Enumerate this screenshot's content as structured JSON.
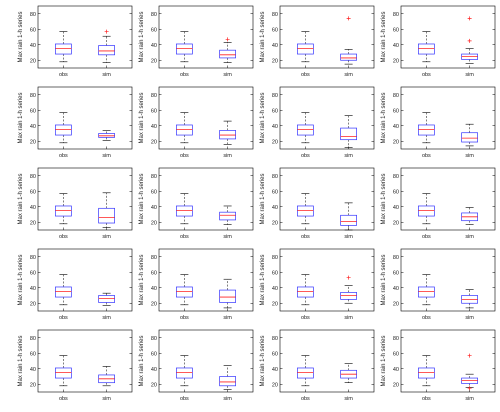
{
  "colors": {
    "box": "#3333ff",
    "median": "#ff2020",
    "whisker": "#000000",
    "outlier": "#ff2020",
    "axes": "#000000"
  },
  "chart_data": {
    "type": "boxplot",
    "layout": {
      "rows": 5,
      "cols": 4
    },
    "ylabel": "Max rain 1-h series",
    "categories": [
      "obs",
      "sim"
    ],
    "ylim": [
      10,
      90
    ],
    "yticks": [
      20,
      40,
      60,
      80
    ],
    "grid": false,
    "panels": [
      {
        "boxes": [
          {
            "lw": 18,
            "q1": 28,
            "med": 35,
            "q3": 41,
            "uw": 57
          },
          {
            "lw": 17,
            "q1": 27,
            "med": 32,
            "q3": 39,
            "uw": 51,
            "outliers": [
              57
            ]
          }
        ]
      },
      {
        "boxes": [
          {
            "lw": 18,
            "q1": 28,
            "med": 35,
            "q3": 41,
            "uw": 57
          },
          {
            "lw": 17,
            "q1": 23,
            "med": 27,
            "q3": 33,
            "uw": 43,
            "outliers": [
              47
            ]
          }
        ]
      },
      {
        "boxes": [
          {
            "lw": 18,
            "q1": 28,
            "med": 35,
            "q3": 41,
            "uw": 57
          },
          {
            "lw": 15,
            "q1": 20,
            "med": 23,
            "q3": 28,
            "uw": 34,
            "outliers": [
              74
            ]
          }
        ]
      },
      {
        "boxes": [
          {
            "lw": 18,
            "q1": 28,
            "med": 35,
            "q3": 41,
            "uw": 57
          },
          {
            "lw": 16,
            "q1": 21,
            "med": 25,
            "q3": 28,
            "uw": 35,
            "outliers": [
              74,
              45
            ]
          }
        ]
      },
      {
        "boxes": [
          {
            "lw": 18,
            "q1": 28,
            "med": 35,
            "q3": 41,
            "uw": 57
          },
          {
            "lw": 21,
            "q1": 25,
            "med": 27,
            "q3": 30,
            "uw": 34
          }
        ]
      },
      {
        "boxes": [
          {
            "lw": 18,
            "q1": 28,
            "med": 35,
            "q3": 41,
            "uw": 57
          },
          {
            "lw": 16,
            "q1": 23,
            "med": 28,
            "q3": 34,
            "uw": 46
          }
        ]
      },
      {
        "boxes": [
          {
            "lw": 18,
            "q1": 28,
            "med": 35,
            "q3": 41,
            "uw": 57
          },
          {
            "lw": 12,
            "q1": 22,
            "med": 26,
            "q3": 37,
            "uw": 53
          }
        ]
      },
      {
        "boxes": [
          {
            "lw": 18,
            "q1": 28,
            "med": 35,
            "q3": 41,
            "uw": 57
          },
          {
            "lw": 14,
            "q1": 19,
            "med": 24,
            "q3": 31,
            "uw": 42
          }
        ]
      },
      {
        "boxes": [
          {
            "lw": 18,
            "q1": 28,
            "med": 35,
            "q3": 41,
            "uw": 57
          },
          {
            "lw": 13,
            "q1": 19,
            "med": 26,
            "q3": 38,
            "uw": 58
          }
        ]
      },
      {
        "boxes": [
          {
            "lw": 18,
            "q1": 28,
            "med": 35,
            "q3": 41,
            "uw": 57
          },
          {
            "lw": 17,
            "q1": 23,
            "med": 29,
            "q3": 33,
            "uw": 41
          }
        ]
      },
      {
        "boxes": [
          {
            "lw": 18,
            "q1": 28,
            "med": 35,
            "q3": 41,
            "uw": 57
          },
          {
            "lw": 10,
            "q1": 16,
            "med": 21,
            "q3": 29,
            "uw": 45
          }
        ]
      },
      {
        "boxes": [
          {
            "lw": 18,
            "q1": 28,
            "med": 35,
            "q3": 41,
            "uw": 57
          },
          {
            "lw": 17,
            "q1": 22,
            "med": 27,
            "q3": 32,
            "uw": 39
          }
        ]
      },
      {
        "boxes": [
          {
            "lw": 18,
            "q1": 28,
            "med": 35,
            "q3": 41,
            "uw": 57
          },
          {
            "lw": 17,
            "q1": 21,
            "med": 26,
            "q3": 30,
            "uw": 33
          }
        ]
      },
      {
        "boxes": [
          {
            "lw": 18,
            "q1": 28,
            "med": 35,
            "q3": 41,
            "uw": 57
          },
          {
            "lw": 14,
            "q1": 21,
            "med": 28,
            "q3": 37,
            "uw": 51
          }
        ]
      },
      {
        "boxes": [
          {
            "lw": 18,
            "q1": 28,
            "med": 35,
            "q3": 41,
            "uw": 57
          },
          {
            "lw": 20,
            "q1": 25,
            "med": 30,
            "q3": 34,
            "uw": 43,
            "outliers": [
              53
            ]
          }
        ]
      },
      {
        "boxes": [
          {
            "lw": 18,
            "q1": 28,
            "med": 35,
            "q3": 41,
            "uw": 57
          },
          {
            "lw": 14,
            "q1": 20,
            "med": 25,
            "q3": 30,
            "uw": 38
          }
        ]
      },
      {
        "boxes": [
          {
            "lw": 18,
            "q1": 28,
            "med": 35,
            "q3": 41,
            "uw": 57
          },
          {
            "lw": 18,
            "q1": 22,
            "med": 27,
            "q3": 32,
            "uw": 43
          }
        ]
      },
      {
        "boxes": [
          {
            "lw": 18,
            "q1": 28,
            "med": 35,
            "q3": 41,
            "uw": 57
          },
          {
            "lw": 13,
            "q1": 18,
            "med": 23,
            "q3": 30,
            "uw": 44
          }
        ]
      },
      {
        "boxes": [
          {
            "lw": 18,
            "q1": 28,
            "med": 35,
            "q3": 41,
            "uw": 57
          },
          {
            "lw": 22,
            "q1": 28,
            "med": 33,
            "q3": 38,
            "uw": 47
          }
        ]
      },
      {
        "boxes": [
          {
            "lw": 18,
            "q1": 28,
            "med": 35,
            "q3": 41,
            "uw": 57
          },
          {
            "lw": 16,
            "q1": 21,
            "med": 25,
            "q3": 28,
            "uw": 33,
            "outliers": [
              57,
              15
            ]
          }
        ]
      }
    ]
  }
}
